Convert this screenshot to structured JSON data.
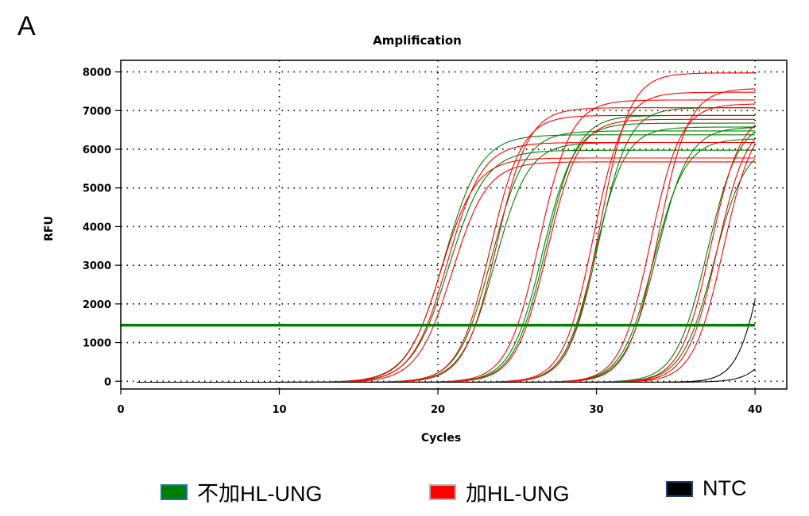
{
  "panel_label": "A",
  "chart_data": {
    "type": "line",
    "title": "Amplification",
    "xlabel": "Cycles",
    "ylabel": "RFU",
    "xlim": [
      0,
      42
    ],
    "ylim": [
      -200,
      8300
    ],
    "xticks": [
      0,
      10,
      20,
      30,
      40
    ],
    "yticks": [
      0,
      1000,
      2000,
      3000,
      4000,
      5000,
      6000,
      7000,
      8000
    ],
    "grid": true,
    "threshold": 1450,
    "threshold_color": "#008000",
    "legend_position": "bottom",
    "legend": [
      {
        "label": "不加HL-UNG",
        "color": "#008000",
        "border": "#1f6fbf"
      },
      {
        "label": "加HL-UNG",
        "color": "#ff0000",
        "border": "#b0b0b0"
      },
      {
        "label": "NTC",
        "color": "#000000",
        "border": "#1f3f7f"
      }
    ],
    "curve_groups": [
      {
        "name": "不加HL-UNG",
        "color": "#008000",
        "curves": [
          {
            "midpoint": 20.4,
            "slope": 1.15,
            "plateau": 6400
          },
          {
            "midpoint": 20.7,
            "slope": 1.15,
            "plateau": 6000
          },
          {
            "midpoint": 23.4,
            "slope": 1.05,
            "plateau": 6500
          },
          {
            "midpoint": 23.6,
            "slope": 1.05,
            "plateau": 6200
          },
          {
            "midpoint": 26.6,
            "slope": 1.0,
            "plateau": 6700
          },
          {
            "midpoint": 26.8,
            "slope": 1.0,
            "plateau": 6900
          },
          {
            "midpoint": 29.9,
            "slope": 0.95,
            "plateau": 6600
          },
          {
            "midpoint": 30.1,
            "slope": 0.95,
            "plateau": 7100
          },
          {
            "midpoint": 33.6,
            "slope": 1.0,
            "plateau": 6300
          },
          {
            "midpoint": 33.8,
            "slope": 1.0,
            "plateau": 6600
          },
          {
            "midpoint": 37.0,
            "slope": 1.0,
            "plateau": 6800
          },
          {
            "midpoint": 37.4,
            "slope": 1.0,
            "plateau": 6200
          }
        ]
      },
      {
        "name": "加HL-UNG",
        "color": "#ff0000",
        "curves": [
          {
            "midpoint": 20.2,
            "slope": 1.1,
            "plateau": 5800
          },
          {
            "midpoint": 20.6,
            "slope": 1.1,
            "plateau": 6200
          },
          {
            "midpoint": 20.9,
            "slope": 1.1,
            "plateau": 5700
          },
          {
            "midpoint": 23.3,
            "slope": 1.0,
            "plateau": 6900
          },
          {
            "midpoint": 23.7,
            "slope": 1.0,
            "plateau": 7100
          },
          {
            "midpoint": 26.4,
            "slope": 1.0,
            "plateau": 7300
          },
          {
            "midpoint": 26.9,
            "slope": 1.0,
            "plateau": 6800
          },
          {
            "midpoint": 29.8,
            "slope": 0.95,
            "plateau": 7500
          },
          {
            "midpoint": 30.2,
            "slope": 0.95,
            "plateau": 8000
          },
          {
            "midpoint": 33.4,
            "slope": 0.95,
            "plateau": 7200
          },
          {
            "midpoint": 33.9,
            "slope": 0.95,
            "plateau": 7600
          },
          {
            "midpoint": 37.2,
            "slope": 0.95,
            "plateau": 7000
          },
          {
            "midpoint": 37.6,
            "slope": 0.95,
            "plateau": 6800
          },
          {
            "midpoint": 38.0,
            "slope": 0.95,
            "plateau": 6900
          }
        ]
      },
      {
        "name": "NTC",
        "color": "#000000",
        "curves": [
          {
            "midpoint": 40.6,
            "slope": 0.8,
            "plateau": 6600
          },
          {
            "midpoint": 42.6,
            "slope": 0.9,
            "plateau": 6500
          }
        ]
      }
    ]
  }
}
